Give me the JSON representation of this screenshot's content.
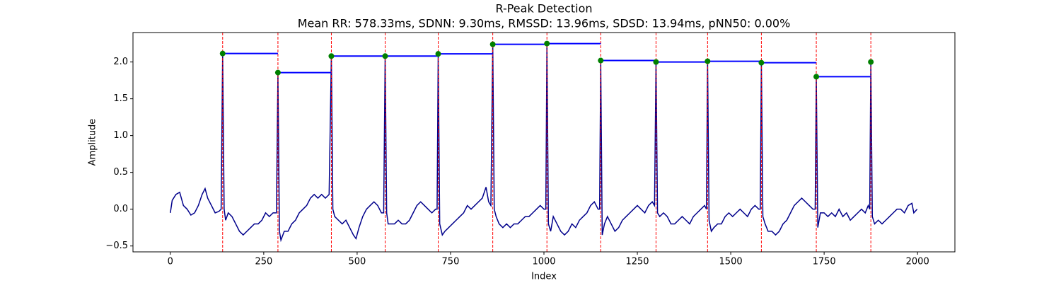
{
  "chart_data": {
    "type": "line",
    "title": "R-Peak Detection",
    "subtitle": "Mean RR: 578.33ms, SDNN: 9.30ms, RMSSD: 13.96ms, SDSD: 13.94ms, pNN50: 0.00%",
    "x_label": "Index",
    "y_label": "Amplitude",
    "xlim": [
      -100,
      2100
    ],
    "xticks": [
      0,
      250,
      500,
      750,
      1000,
      1250,
      1500,
      1750,
      2000
    ],
    "ylim": [
      -0.58,
      2.4
    ],
    "yticks": [
      {
        "value": -0.5,
        "label": "−0.5"
      },
      {
        "value": 0,
        "label": "0.0"
      },
      0.5,
      {
        "value": 1,
        "label": "1.0"
      },
      1.5,
      {
        "value": 2,
        "label": "2.0"
      }
    ],
    "signal": {
      "color": "#00008b",
      "x": [
        0,
        5,
        15,
        25,
        35,
        45,
        55,
        65,
        75,
        85,
        93,
        100,
        110,
        120,
        130,
        136,
        140,
        144,
        148,
        155,
        165,
        175,
        185,
        195,
        205,
        215,
        225,
        235,
        245,
        255,
        265,
        275,
        284,
        288,
        292,
        296,
        305,
        315,
        325,
        335,
        345,
        355,
        365,
        375,
        385,
        395,
        405,
        415,
        425,
        431,
        435,
        440,
        450,
        460,
        470,
        480,
        490,
        497,
        505,
        515,
        525,
        535,
        545,
        555,
        565,
        571,
        575,
        579,
        583,
        590,
        600,
        610,
        620,
        630,
        640,
        650,
        660,
        670,
        680,
        690,
        700,
        710,
        714,
        717,
        721,
        728,
        735,
        745,
        755,
        765,
        775,
        785,
        795,
        805,
        815,
        825,
        835,
        845,
        852,
        858,
        863,
        867,
        872,
        880,
        890,
        900,
        910,
        920,
        930,
        940,
        950,
        960,
        970,
        980,
        990,
        1000,
        1005,
        1008,
        1012,
        1018,
        1025,
        1035,
        1045,
        1055,
        1065,
        1075,
        1085,
        1095,
        1105,
        1115,
        1125,
        1135,
        1145,
        1149,
        1152,
        1156,
        1162,
        1170,
        1180,
        1190,
        1200,
        1210,
        1220,
        1230,
        1240,
        1250,
        1260,
        1270,
        1280,
        1290,
        1296,
        1300,
        1304,
        1310,
        1320,
        1330,
        1340,
        1350,
        1360,
        1370,
        1380,
        1390,
        1400,
        1410,
        1420,
        1430,
        1435,
        1438,
        1442,
        1448,
        1455,
        1465,
        1475,
        1485,
        1495,
        1505,
        1515,
        1525,
        1535,
        1545,
        1555,
        1565,
        1575,
        1579,
        1582,
        1586,
        1592,
        1600,
        1610,
        1620,
        1630,
        1640,
        1650,
        1660,
        1670,
        1680,
        1690,
        1700,
        1710,
        1720,
        1726,
        1729,
        1733,
        1740,
        1750,
        1760,
        1770,
        1780,
        1790,
        1800,
        1810,
        1820,
        1830,
        1840,
        1850,
        1860,
        1868,
        1872,
        1875,
        1879,
        1885,
        1895,
        1905,
        1915,
        1925,
        1935,
        1945,
        1955,
        1965,
        1975,
        1985,
        1990,
        1999
      ],
      "values": [
        -0.05,
        0.12,
        0.2,
        0.23,
        0.05,
        0.0,
        -0.08,
        -0.05,
        0.05,
        0.2,
        0.28,
        0.15,
        0.05,
        -0.05,
        -0.03,
        0.0,
        2.115,
        0.0,
        -0.15,
        -0.05,
        -0.1,
        -0.2,
        -0.3,
        -0.35,
        -0.3,
        -0.25,
        -0.2,
        -0.2,
        -0.15,
        -0.05,
        -0.1,
        -0.05,
        -0.05,
        1.856,
        -0.3,
        -0.42,
        -0.3,
        -0.3,
        -0.2,
        -0.15,
        -0.05,
        0.0,
        0.05,
        0.15,
        0.2,
        0.15,
        0.2,
        0.15,
        0.2,
        2.08,
        0.0,
        -0.1,
        -0.15,
        -0.2,
        -0.15,
        -0.25,
        -0.35,
        -0.4,
        -0.25,
        -0.1,
        0.0,
        0.05,
        0.1,
        0.05,
        -0.05,
        -0.05,
        2.08,
        -0.05,
        -0.2,
        -0.2,
        -0.2,
        -0.15,
        -0.2,
        -0.2,
        -0.15,
        -0.05,
        0.05,
        0.1,
        0.05,
        0.0,
        -0.05,
        0.0,
        0.0,
        2.11,
        -0.2,
        -0.35,
        -0.3,
        -0.25,
        -0.2,
        -0.15,
        -0.1,
        -0.05,
        0.05,
        0.0,
        0.05,
        0.1,
        0.15,
        0.3,
        0.1,
        0.05,
        2.24,
        0.0,
        -0.1,
        -0.2,
        -0.25,
        -0.2,
        -0.25,
        -0.2,
        -0.2,
        -0.15,
        -0.1,
        -0.1,
        -0.05,
        0.0,
        0.05,
        0.0,
        0.0,
        2.25,
        -0.2,
        -0.3,
        -0.1,
        -0.2,
        -0.3,
        -0.35,
        -0.3,
        -0.2,
        -0.25,
        -0.15,
        -0.1,
        -0.05,
        0.05,
        0.1,
        0.0,
        0.0,
        2.02,
        -0.35,
        -0.2,
        -0.1,
        -0.2,
        -0.3,
        -0.25,
        -0.15,
        -0.1,
        -0.05,
        0.0,
        0.05,
        0.0,
        -0.05,
        0.05,
        0.1,
        0.05,
        2.0,
        -0.05,
        -0.1,
        -0.05,
        -0.1,
        -0.2,
        -0.2,
        -0.15,
        -0.1,
        -0.15,
        -0.2,
        -0.1,
        -0.05,
        0.0,
        0.05,
        0.0,
        2.01,
        -0.15,
        -0.3,
        -0.25,
        -0.2,
        -0.2,
        -0.1,
        -0.05,
        -0.1,
        -0.05,
        0.0,
        -0.05,
        -0.1,
        0.0,
        0.05,
        0.0,
        0.0,
        1.99,
        -0.1,
        -0.2,
        -0.3,
        -0.3,
        -0.35,
        -0.3,
        -0.2,
        -0.15,
        -0.05,
        0.05,
        0.1,
        0.15,
        0.1,
        0.05,
        0.0,
        0.0,
        1.8,
        -0.25,
        -0.05,
        -0.05,
        -0.1,
        -0.05,
        -0.1,
        0.0,
        -0.1,
        -0.05,
        -0.15,
        -0.1,
        -0.05,
        0.0,
        -0.05,
        0.05,
        0.0,
        2.0,
        -0.1,
        -0.2,
        -0.15,
        -0.2,
        -0.15,
        -0.1,
        -0.05,
        0.0,
        0.0,
        -0.05,
        0.05,
        0.08,
        -0.05,
        0.0
      ]
    },
    "peaks": {
      "color": "green",
      "vline_color": "red",
      "rr_color": "blue",
      "x": [
        140,
        288,
        431,
        575,
        717,
        863,
        1008,
        1152,
        1300,
        1438,
        1582,
        1729,
        1875
      ],
      "values": [
        2.115,
        1.856,
        2.08,
        2.08,
        2.11,
        2.24,
        2.25,
        2.02,
        2.0,
        2.01,
        1.99,
        1.8,
        2.0
      ]
    }
  }
}
